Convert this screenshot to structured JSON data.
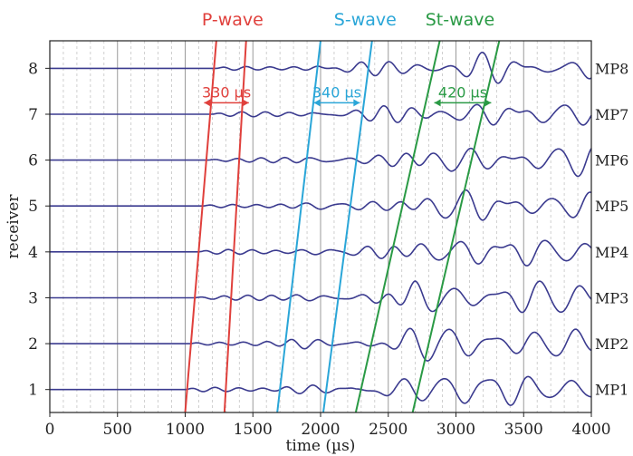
{
  "chart_data": {
    "type": "line",
    "xlabel": "time (µs)",
    "ylabel": "receiver",
    "xlim": [
      0,
      4000
    ],
    "ylim": [
      0.5,
      8.6
    ],
    "x_ticks": [
      "0",
      "500",
      "1000",
      "1500",
      "2000",
      "2500",
      "3000",
      "3500",
      "4000"
    ],
    "y_ticks": [
      "1",
      "2",
      "3",
      "4",
      "5",
      "6",
      "7",
      "8"
    ],
    "grid": "vertical",
    "receivers": [
      "MP1",
      "MP2",
      "MP3",
      "MP4",
      "MP5",
      "MP6",
      "MP7",
      "MP8"
    ],
    "wave_colors": {
      "trace": "#3b3b8f",
      "p": "#e0403c",
      "s": "#2aa6d8",
      "st": "#2a9a45"
    },
    "wave_labels": {
      "p": "P-wave",
      "s": "S-wave",
      "st": "St-wave"
    },
    "arrivals": {
      "p": {
        "start": [
          1000,
          1230
        ],
        "end": [
          1290,
          1450
        ]
      },
      "s": {
        "start": [
          1680,
          2000
        ],
        "end": [
          2020,
          2380
        ]
      },
      "st": {
        "start": [
          2260,
          2880
        ],
        "end": [
          2680,
          3320
        ]
      }
    },
    "annotations": [
      {
        "text": "330 µs",
        "color": "#e0403c",
        "receiver": 7.25,
        "t1": 1140,
        "t2": 1470
      },
      {
        "text": "340 µs",
        "color": "#2aa6d8",
        "receiver": 7.25,
        "t1": 1950,
        "t2": 2290
      },
      {
        "text": "420 µs",
        "color": "#2a9a45",
        "receiver": 7.25,
        "t1": 2840,
        "t2": 3260
      }
    ]
  }
}
